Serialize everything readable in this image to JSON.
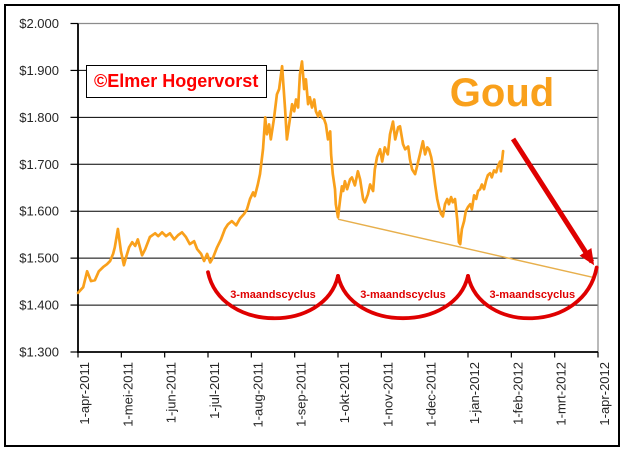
{
  "title": "Goud",
  "watermark": "©Elmer Hogervorst",
  "colors": {
    "series_orange": "#F9A01B",
    "title_orange": "#F9A01B",
    "annotation_red": "#DF0000",
    "watermark_red": "#FE0000",
    "trendline_tan": "#E7AF4C",
    "gridline": "#000000",
    "plot_border_gray": "#8C8C8C",
    "axis_black": "#000000",
    "tick_text": "#262626"
  },
  "chart_data": {
    "type": "line",
    "title": "Goud",
    "xlabel": "",
    "ylabel": "",
    "grid": true,
    "legend": "none",
    "ylim": [
      1300,
      2000
    ],
    "y_tick_step": 100,
    "x_month_intervals": 12,
    "y_ticks": [
      {
        "value": 2000,
        "label": "$2.000"
      },
      {
        "value": 1900,
        "label": "$1.900"
      },
      {
        "value": 1800,
        "label": "$1.800"
      },
      {
        "value": 1700,
        "label": "$1.700"
      },
      {
        "value": 1600,
        "label": "$1.600"
      },
      {
        "value": 1500,
        "label": "$1.500"
      },
      {
        "value": 1400,
        "label": "$1.400"
      },
      {
        "value": 1300,
        "label": "$1.300"
      }
    ],
    "x_tick_labels": [
      "1-apr-2011",
      "1-mei-2011",
      "1-jun-2011",
      "1-jul-2011",
      "1-aug-2011",
      "1-sep-2011",
      "1-okt-2011",
      "1-nov-2011",
      "1-dec-2011",
      "1-jan-2012",
      "1-feb-2012",
      "1-mrt-2012",
      "1-apr-2012"
    ],
    "series": [
      {
        "name": "Goud (USD/oz)",
        "points_month_price": [
          [
            0,
            1426
          ],
          [
            0.12,
            1438
          ],
          [
            0.21,
            1472
          ],
          [
            0.3,
            1451
          ],
          [
            0.39,
            1453
          ],
          [
            0.48,
            1472
          ],
          [
            0.58,
            1481
          ],
          [
            0.67,
            1487
          ],
          [
            0.74,
            1494
          ],
          [
            0.81,
            1509
          ],
          [
            0.85,
            1523
          ],
          [
            0.92,
            1562
          ],
          [
            0.99,
            1515
          ],
          [
            1.06,
            1485
          ],
          [
            1.11,
            1502
          ],
          [
            1.18,
            1523
          ],
          [
            1.25,
            1534
          ],
          [
            1.32,
            1526
          ],
          [
            1.38,
            1540
          ],
          [
            1.48,
            1506
          ],
          [
            1.55,
            1519
          ],
          [
            1.66,
            1545
          ],
          [
            1.78,
            1553
          ],
          [
            1.85,
            1547
          ],
          [
            1.94,
            1555
          ],
          [
            2.03,
            1547
          ],
          [
            2.12,
            1553
          ],
          [
            2.22,
            1540
          ],
          [
            2.31,
            1549
          ],
          [
            2.4,
            1555
          ],
          [
            2.49,
            1545
          ],
          [
            2.58,
            1530
          ],
          [
            2.68,
            1536
          ],
          [
            2.75,
            1519
          ],
          [
            2.84,
            1509
          ],
          [
            2.91,
            1494
          ],
          [
            2.98,
            1509
          ],
          [
            3.05,
            1491
          ],
          [
            3.12,
            1502
          ],
          [
            3.21,
            1523
          ],
          [
            3.3,
            1540
          ],
          [
            3.39,
            1562
          ],
          [
            3.46,
            1572
          ],
          [
            3.55,
            1579
          ],
          [
            3.65,
            1570
          ],
          [
            3.74,
            1585
          ],
          [
            3.83,
            1594
          ],
          [
            3.9,
            1604
          ],
          [
            3.97,
            1626
          ],
          [
            4.04,
            1640
          ],
          [
            4.08,
            1632
          ],
          [
            4.15,
            1657
          ],
          [
            4.2,
            1679
          ],
          [
            4.27,
            1732
          ],
          [
            4.32,
            1800
          ],
          [
            4.36,
            1764
          ],
          [
            4.41,
            1785
          ],
          [
            4.45,
            1753
          ],
          [
            4.52,
            1796
          ],
          [
            4.59,
            1849
          ],
          [
            4.64,
            1860
          ],
          [
            4.71,
            1909
          ],
          [
            4.78,
            1817
          ],
          [
            4.82,
            1753
          ],
          [
            4.89,
            1796
          ],
          [
            4.94,
            1828
          ],
          [
            4.99,
            1813
          ],
          [
            5.03,
            1838
          ],
          [
            5.08,
            1821
          ],
          [
            5.12,
            1891
          ],
          [
            5.17,
            1919
          ],
          [
            5.22,
            1860
          ],
          [
            5.26,
            1881
          ],
          [
            5.31,
            1828
          ],
          [
            5.35,
            1843
          ],
          [
            5.4,
            1821
          ],
          [
            5.45,
            1838
          ],
          [
            5.49,
            1813
          ],
          [
            5.54,
            1802
          ],
          [
            5.58,
            1813
          ],
          [
            5.63,
            1800
          ],
          [
            5.68,
            1796
          ],
          [
            5.72,
            1785
          ],
          [
            5.77,
            1753
          ],
          [
            5.82,
            1770
          ],
          [
            5.84,
            1721
          ],
          [
            5.88,
            1679
          ],
          [
            5.93,
            1647
          ],
          [
            5.95,
            1615
          ],
          [
            6,
            1587
          ],
          [
            6.05,
            1626
          ],
          [
            6.09,
            1653
          ],
          [
            6.12,
            1643
          ],
          [
            6.16,
            1664
          ],
          [
            6.21,
            1647
          ],
          [
            6.28,
            1668
          ],
          [
            6.32,
            1672
          ],
          [
            6.39,
            1655
          ],
          [
            6.46,
            1685
          ],
          [
            6.51,
            1668
          ],
          [
            6.58,
            1626
          ],
          [
            6.62,
            1619
          ],
          [
            6.69,
            1636
          ],
          [
            6.74,
            1657
          ],
          [
            6.81,
            1643
          ],
          [
            6.85,
            1689
          ],
          [
            6.9,
            1715
          ],
          [
            6.97,
            1732
          ],
          [
            7.02,
            1706
          ],
          [
            7.08,
            1736
          ],
          [
            7.15,
            1721
          ],
          [
            7.2,
            1764
          ],
          [
            7.27,
            1791
          ],
          [
            7.32,
            1753
          ],
          [
            7.39,
            1779
          ],
          [
            7.43,
            1781
          ],
          [
            7.5,
            1743
          ],
          [
            7.55,
            1732
          ],
          [
            7.62,
            1738
          ],
          [
            7.66,
            1711
          ],
          [
            7.71,
            1689
          ],
          [
            7.78,
            1679
          ],
          [
            7.85,
            1706
          ],
          [
            7.89,
            1721
          ],
          [
            7.96,
            1749
          ],
          [
            8.01,
            1721
          ],
          [
            8.06,
            1736
          ],
          [
            8.1,
            1732
          ],
          [
            8.15,
            1715
          ],
          [
            8.19,
            1694
          ],
          [
            8.24,
            1657
          ],
          [
            8.29,
            1626
          ],
          [
            8.33,
            1609
          ],
          [
            8.38,
            1594
          ],
          [
            8.42,
            1589
          ],
          [
            8.47,
            1615
          ],
          [
            8.52,
            1626
          ],
          [
            8.56,
            1615
          ],
          [
            8.61,
            1630
          ],
          [
            8.65,
            1619
          ],
          [
            8.7,
            1626
          ],
          [
            8.75,
            1583
          ],
          [
            8.79,
            1534
          ],
          [
            8.82,
            1530
          ],
          [
            8.86,
            1562
          ],
          [
            8.91,
            1579
          ],
          [
            8.95,
            1600
          ],
          [
            9,
            1609
          ],
          [
            9.05,
            1615
          ],
          [
            9.09,
            1604
          ],
          [
            9.14,
            1634
          ],
          [
            9.19,
            1626
          ],
          [
            9.23,
            1643
          ],
          [
            9.28,
            1647
          ],
          [
            9.32,
            1657
          ],
          [
            9.37,
            1647
          ],
          [
            9.42,
            1666
          ],
          [
            9.46,
            1677
          ],
          [
            9.51,
            1681
          ],
          [
            9.55,
            1672
          ],
          [
            9.6,
            1687
          ],
          [
            9.65,
            1683
          ],
          [
            9.69,
            1696
          ],
          [
            9.74,
            1706
          ],
          [
            9.76,
            1685
          ],
          [
            9.81,
            1728
          ]
        ]
      }
    ],
    "trendline": {
      "from_month": 6.0,
      "from_price": 1583,
      "to_month": 11.93,
      "to_price": 1458
    },
    "arrow": {
      "from_month": 10.04,
      "from_price": 1754,
      "to_month": 11.86,
      "to_price": 1492
    },
    "cycles": {
      "label": "3-maandscyclus",
      "bottom_price": 1372,
      "label_price": 1424,
      "arcs": [
        {
          "from_month": 3.0,
          "from_price": 1470,
          "to_month": 6.0,
          "to_price": 1462
        },
        {
          "from_month": 6.0,
          "from_price": 1462,
          "to_month": 9.0,
          "to_price": 1462
        },
        {
          "from_month": 9.0,
          "from_price": 1462,
          "to_month": 11.97,
          "to_price": 1480
        }
      ]
    }
  }
}
